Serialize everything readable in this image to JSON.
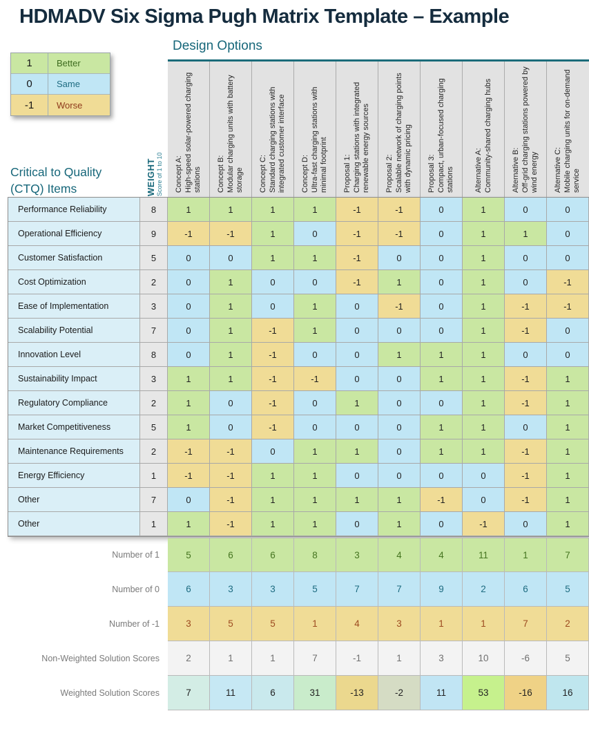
{
  "title": "HDMADV Six Sigma Pugh Matrix Template – Example",
  "legend": {
    "items": [
      {
        "value": "1",
        "label": "Better"
      },
      {
        "value": "0",
        "label": "Same"
      },
      {
        "value": "-1",
        "label": "Worse"
      }
    ]
  },
  "design_options_heading": "Design Options",
  "ctq_heading_line1": "Critical to Quality",
  "ctq_heading_line2": "(CTQ) Items",
  "weight_header": {
    "title": "WEIGHT",
    "subtitle": "Score of 1 to 10"
  },
  "columns": [
    {
      "name": "Concept A:",
      "description": "High-speed solar-powered charging stations"
    },
    {
      "name": "Concept B:",
      "description": "Modular charging units with battery storage"
    },
    {
      "name": "Concept C:",
      "description": "Standard charging stations with integrated customer interface"
    },
    {
      "name": "Concept D:",
      "description": "Ultra-fast charging stations with minimal footprint"
    },
    {
      "name": "Proposal 1:",
      "description": "Charging stations with integrated renewable energy sources"
    },
    {
      "name": "Proposal 2:",
      "description": "Scalable network of charging points with dynamic pricing"
    },
    {
      "name": "Proposal 3:",
      "description": "Compact, urban-focused charging stations"
    },
    {
      "name": "Alternative A:",
      "description": "Community-shared charging hubs"
    },
    {
      "name": "Alternative B:",
      "description": "Off-grid charging stations powered by wind energy"
    },
    {
      "name": "Alternative C:",
      "description": "Mobile charging units for on-demand service"
    }
  ],
  "rows": [
    {
      "label": "Performance Reliability",
      "weight": 8,
      "values": [
        1,
        1,
        1,
        1,
        -1,
        -1,
        0,
        1,
        0,
        0
      ]
    },
    {
      "label": "Operational Efficiency",
      "weight": 9,
      "values": [
        -1,
        -1,
        1,
        0,
        -1,
        -1,
        0,
        1,
        1,
        0
      ]
    },
    {
      "label": "Customer Satisfaction",
      "weight": 5,
      "values": [
        0,
        0,
        1,
        1,
        -1,
        0,
        0,
        1,
        0,
        0
      ]
    },
    {
      "label": "Cost Optimization",
      "weight": 2,
      "values": [
        0,
        1,
        0,
        0,
        -1,
        1,
        0,
        1,
        0,
        -1
      ]
    },
    {
      "label": "Ease of Implementation",
      "weight": 3,
      "values": [
        0,
        1,
        0,
        1,
        0,
        -1,
        0,
        1,
        -1,
        -1
      ]
    },
    {
      "label": "Scalability Potential",
      "weight": 7,
      "values": [
        0,
        1,
        -1,
        1,
        0,
        0,
        0,
        1,
        -1,
        0
      ]
    },
    {
      "label": "Innovation Level",
      "weight": 8,
      "values": [
        0,
        1,
        -1,
        0,
        0,
        1,
        1,
        1,
        0,
        0
      ]
    },
    {
      "label": "Sustainability Impact",
      "weight": 3,
      "values": [
        1,
        1,
        -1,
        -1,
        0,
        0,
        1,
        1,
        -1,
        1
      ]
    },
    {
      "label": "Regulatory Compliance",
      "weight": 2,
      "values": [
        1,
        0,
        -1,
        0,
        1,
        0,
        0,
        1,
        -1,
        1
      ]
    },
    {
      "label": "Market Competitiveness",
      "weight": 5,
      "values": [
        1,
        0,
        -1,
        0,
        0,
        0,
        1,
        1,
        0,
        1
      ]
    },
    {
      "label": "Maintenance Requirements",
      "weight": 2,
      "values": [
        -1,
        -1,
        0,
        1,
        1,
        0,
        1,
        1,
        -1,
        1
      ]
    },
    {
      "label": "Energy Efficiency",
      "weight": 1,
      "values": [
        -1,
        -1,
        1,
        1,
        0,
        0,
        0,
        0,
        -1,
        1
      ]
    },
    {
      "label": "Other",
      "weight": 7,
      "values": [
        0,
        -1,
        1,
        1,
        1,
        1,
        -1,
        0,
        -1,
        1
      ]
    },
    {
      "label": "Other",
      "weight": 1,
      "values": [
        1,
        -1,
        1,
        1,
        0,
        1,
        0,
        -1,
        0,
        1
      ]
    }
  ],
  "summary": [
    {
      "label": "Number of 1",
      "style": "green",
      "values": [
        5,
        6,
        6,
        8,
        3,
        4,
        4,
        11,
        1,
        7
      ]
    },
    {
      "label": "Number of 0",
      "style": "blue",
      "values": [
        6,
        3,
        3,
        5,
        7,
        7,
        9,
        2,
        6,
        5
      ]
    },
    {
      "label": "Number of -1",
      "style": "yellow",
      "values": [
        3,
        5,
        5,
        1,
        4,
        3,
        1,
        1,
        7,
        2
      ]
    },
    {
      "label": "Non-Weighted Solution Scores",
      "style": "plain",
      "values": [
        2,
        1,
        1,
        7,
        -1,
        1,
        3,
        10,
        -6,
        5
      ]
    },
    {
      "label": "Weighted Solution Scores",
      "style": "scale",
      "values": [
        7,
        11,
        6,
        31,
        -13,
        -2,
        11,
        53,
        -16,
        16
      ],
      "cell_colors": [
        "#d3ede5",
        "#c6e8f4",
        "#c9e9ed",
        "#c9eccb",
        "#ebd88e",
        "#d5dcc4",
        "#c1e5f4",
        "#c6f18d",
        "#efd286",
        "#bfe6ee"
      ]
    }
  ],
  "colors": {
    "better_green": "#c9e7a2",
    "same_blue": "#c0e6f5",
    "worse_yellow": "#f0dc96",
    "teal_heading": "#17677a",
    "title_navy": "#152c3e",
    "header_gray": "#e2e2e2",
    "ctq_label_bg": "#daeff7",
    "weight_col_bg": "#e7e7e7",
    "nonweighted_bg": "#f3f3f3"
  }
}
